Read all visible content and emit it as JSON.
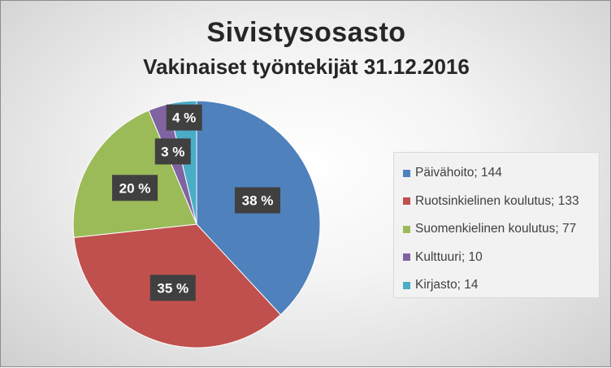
{
  "chart_data": {
    "type": "pie",
    "title": "Sivistysosasto",
    "subtitle": "Vakinaiset työntekijät 31.12.2016",
    "legend_position": "right",
    "slices": [
      {
        "label": "Päivähoito",
        "value": 144,
        "percent_label": "38 %",
        "color": "#4f81bd"
      },
      {
        "label": "Ruotsinkielinen koulutus",
        "value": 133,
        "percent_label": "35 %",
        "color": "#c0504d"
      },
      {
        "label": "Suomenkielinen koulutus",
        "value": 77,
        "percent_label": "20 %",
        "color": "#9bbb59"
      },
      {
        "label": "Kulttuuri",
        "value": 10,
        "percent_label": "3 %",
        "color": "#8064a2"
      },
      {
        "label": "Kirjasto",
        "value": 14,
        "percent_label": "4 %",
        "color": "#4bacc6"
      }
    ],
    "legend_entries": [
      "Päivähoito; 144",
      "Ruotsinkielinen koulutus; 133",
      "Suomenkielinen koulutus; 77",
      "Kulttuuri; 10",
      "Kirjasto; 14"
    ]
  }
}
